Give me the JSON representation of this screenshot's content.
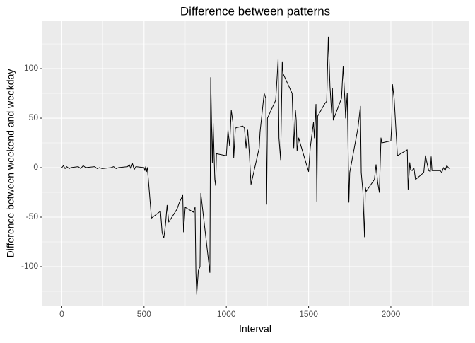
{
  "chart_data": {
    "type": "line",
    "title": "Difference between patterns",
    "x_label": "Interval",
    "y_label": "Difference between weekend and weekday",
    "x": [
      0,
      10,
      20,
      30,
      45,
      55,
      100,
      115,
      130,
      145,
      200,
      215,
      230,
      245,
      300,
      315,
      330,
      345,
      400,
      410,
      420,
      430,
      440,
      450,
      500,
      505,
      510,
      515,
      520,
      530,
      545,
      600,
      610,
      620,
      630,
      640,
      650,
      700,
      715,
      735,
      740,
      750,
      800,
      810,
      815,
      820,
      830,
      840,
      845,
      900,
      905,
      915,
      920,
      930,
      935,
      940,
      1000,
      1010,
      1020,
      1030,
      1040,
      1045,
      1055,
      1100,
      1110,
      1120,
      1130,
      1140,
      1150,
      1200,
      1205,
      1230,
      1240,
      1245,
      1250,
      1300,
      1310,
      1315,
      1320,
      1330,
      1340,
      1345,
      1400,
      1410,
      1420,
      1425,
      1430,
      1440,
      1450,
      1500,
      1510,
      1530,
      1535,
      1545,
      1550,
      1555,
      1600,
      1610,
      1620,
      1630,
      1640,
      1645,
      1650,
      1700,
      1710,
      1720,
      1725,
      1735,
      1745,
      1750,
      1800,
      1815,
      1820,
      1830,
      1840,
      1845,
      1850,
      1900,
      1910,
      1920,
      1930,
      1940,
      1945,
      2000,
      2005,
      2010,
      2020,
      2040,
      2100,
      2105,
      2115,
      2120,
      2130,
      2140,
      2150,
      2200,
      2210,
      2230,
      2240,
      2245,
      2250,
      2300,
      2310,
      2320,
      2330,
      2340,
      2355
    ],
    "series": [
      {
        "color": "#000000",
        "values": [
          0,
          2,
          -1,
          1,
          -1,
          0,
          1,
          -1,
          2,
          0,
          1,
          -1,
          0,
          -1,
          0,
          1,
          -1,
          0,
          1,
          3,
          -1,
          4,
          -2,
          1,
          0,
          -3,
          1,
          -4,
          0,
          -20,
          -51,
          -44,
          -66,
          -71,
          -58,
          -38,
          -55,
          -42,
          -35,
          -28,
          -65,
          -40,
          -45,
          -40,
          -106,
          -128,
          -104,
          -100,
          -26,
          -106,
          91,
          5,
          45,
          -12,
          -18,
          14,
          12,
          38,
          22,
          58,
          46,
          10,
          40,
          42,
          40,
          20,
          38,
          14,
          -17,
          20,
          36,
          75,
          70,
          -37,
          50,
          68,
          95,
          110,
          30,
          8,
          107,
          95,
          75,
          20,
          58,
          48,
          17,
          30,
          24,
          -4,
          20,
          46,
          30,
          64,
          -34,
          52,
          65,
          67,
          132,
          82,
          55,
          80,
          48,
          70,
          102,
          70,
          50,
          75,
          -35,
          -5,
          40,
          62,
          -5,
          -24,
          -70,
          -20,
          -24,
          -12,
          3,
          -15,
          -25,
          30,
          25,
          27,
          43,
          84,
          70,
          12,
          18,
          -22,
          5,
          -2,
          -3,
          0,
          -12,
          -5,
          12,
          -3,
          -4,
          11,
          -3,
          -3,
          -5,
          0,
          -3,
          2,
          -1
        ]
      }
    ],
    "xlim": [
      -117.75,
      2472.75
    ],
    "xticks": [
      0,
      500,
      1000,
      1500,
      2000
    ],
    "ylim": [
      -139.3,
      147.9
    ],
    "yticks": [
      -100,
      -50,
      0,
      50,
      100
    ],
    "grid": true
  }
}
